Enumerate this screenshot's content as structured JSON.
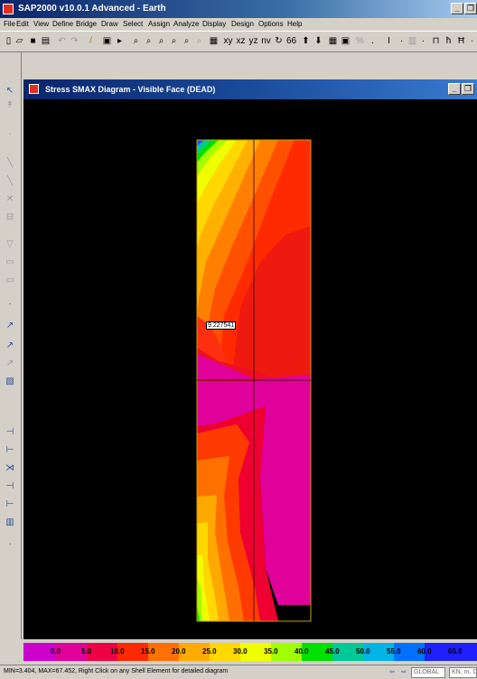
{
  "window": {
    "title": "SAP2000 v10.0.1 Advanced - Earth"
  },
  "menu": [
    "File",
    "Edit",
    "View",
    "Define",
    "Bridge",
    "Draw",
    "Select",
    "Assign",
    "Analyze",
    "Display",
    "Design",
    "Options",
    "Help"
  ],
  "diagram": {
    "title": "Stress SMAX Diagram - Visible Face (DEAD)",
    "value_tag": "9.227541"
  },
  "colorbar": {
    "labels": [
      "0.0",
      "5.0",
      "10.0",
      "15.0",
      "20.0",
      "25.0",
      "30.0",
      "35.0",
      "40.0",
      "45.0",
      "50.0",
      "55.0",
      "60.0",
      "65.0"
    ],
    "colors": [
      "#cc00cc",
      "#e0009a",
      "#ee0044",
      "#ff2a00",
      "#ff7000",
      "#ffaa00",
      "#ffd800",
      "#f0ff00",
      "#a0ff00",
      "#00e000",
      "#00c896",
      "#00b4e6",
      "#0070ff",
      "#2020ff"
    ]
  },
  "status": {
    "text": "MIN=3.404, MAX=67.452, Right Click on any Shell Element for detailed diagram",
    "coord_system": "GLOBAL",
    "units": "KN, m, C"
  },
  "colors": {
    "title_bar": "#0a246a",
    "canvas": "#000000"
  }
}
